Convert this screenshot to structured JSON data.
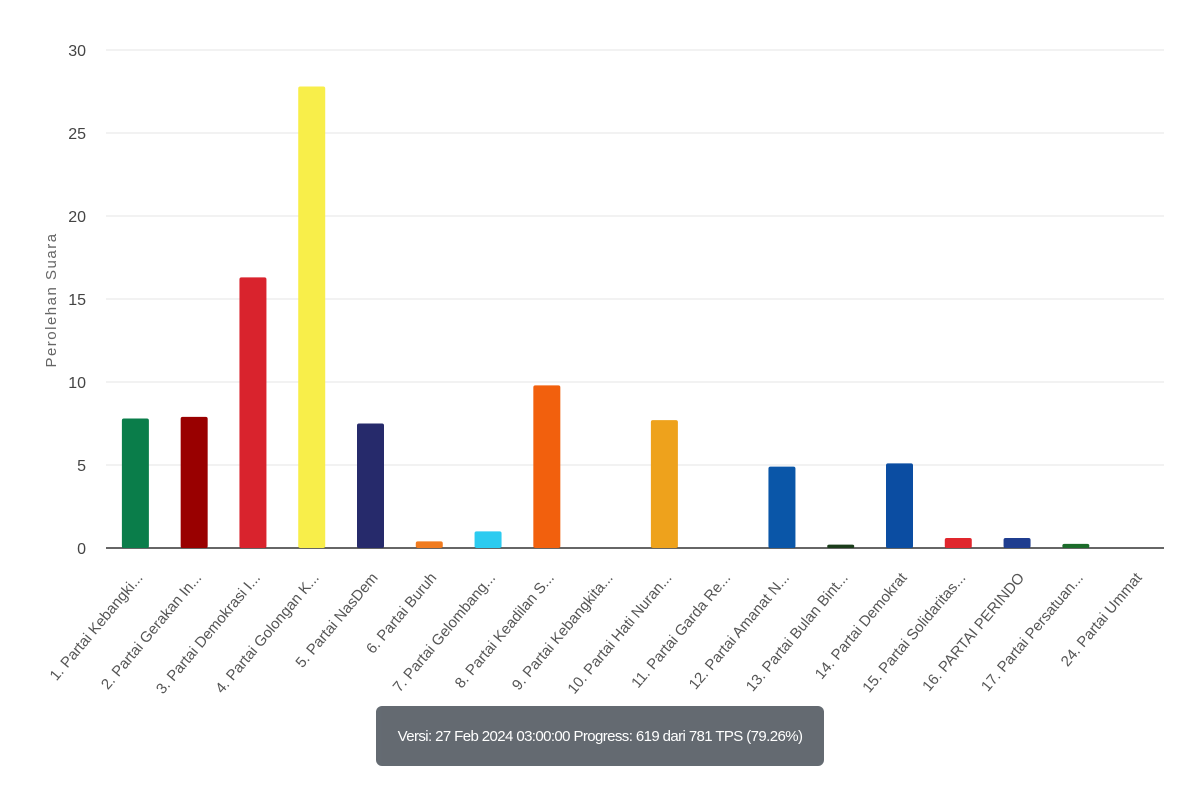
{
  "chart_data": {
    "type": "bar",
    "title": "",
    "xlabel": "",
    "ylabel": "Perolehan Suara",
    "ylim": [
      0,
      30
    ],
    "yticks": [
      0,
      5,
      10,
      15,
      20,
      25,
      30
    ],
    "grid": true,
    "categories": [
      "1. Partai Kebangki...",
      "2. Partai Gerakan In...",
      "3. Partai Demokrasi I...",
      "4. Partai Golongan K...",
      "5. Partai NasDem",
      "6. Partai Buruh",
      "7. Partai Gelombang...",
      "8. Partai Keadilan S...",
      "9. Partai Kebangkita...",
      "10. Partai Hati Nuran...",
      "11. Partai Garda Re...",
      "12. Partai Amanat N...",
      "13. Partai Bulan Bint...",
      "14. Partai Demokrat",
      "15. Partai Solidaritas...",
      "16. PARTAI PERINDO",
      "17. Partai Persatuan...",
      "24. Partai Ummat"
    ],
    "values": [
      7.8,
      7.9,
      16.3,
      27.8,
      7.5,
      0.4,
      1.0,
      9.8,
      0,
      7.7,
      0,
      4.9,
      0.2,
      5.1,
      0.6,
      0.6,
      0.25,
      0
    ],
    "colors": [
      "#0a7d4a",
      "#990000",
      "#d9232d",
      "#f8ee4a",
      "#262a6b",
      "#f07b1f",
      "#2ccbf0",
      "#f2600d",
      "#444444",
      "#eea21c",
      "#444444",
      "#0a56a8",
      "#1a3c1a",
      "#0b4da2",
      "#e0262d",
      "#1f3d8f",
      "#1b6b2a",
      "#444444"
    ]
  },
  "tooltip": {
    "text": "Versi: 27 Feb 2024 03:00:00 Progress: 619 dari 781 TPS (79.26%)"
  }
}
